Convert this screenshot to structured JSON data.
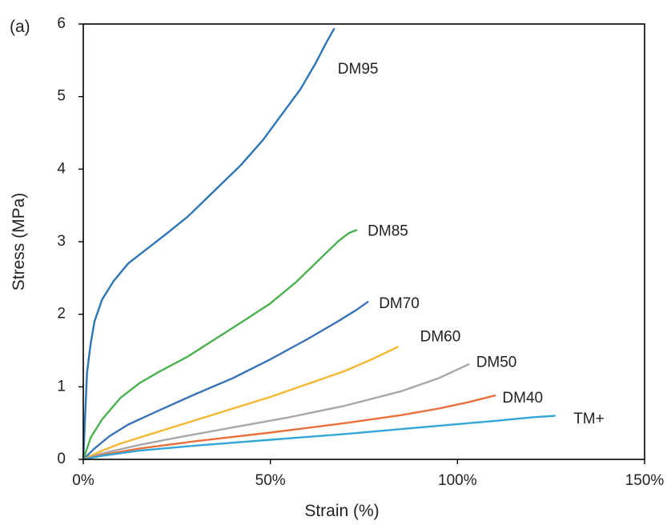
{
  "chart_data": {
    "type": "line",
    "panel_label": "(a)",
    "xlabel": "Strain (%)",
    "ylabel": "Stress (MPa)",
    "xlim": [
      0,
      150
    ],
    "ylim": [
      0,
      6
    ],
    "x_ticks": [
      0,
      50,
      100,
      150
    ],
    "x_tick_labels": [
      "0%",
      "50%",
      "100%",
      "150%"
    ],
    "y_ticks": [
      0,
      1,
      2,
      3,
      4,
      5,
      6
    ],
    "y_tick_labels": [
      "0",
      "1",
      "2",
      "3",
      "4",
      "5",
      "6"
    ],
    "grid": false,
    "legend": "none",
    "series": [
      {
        "name": "DM95",
        "color": "#2E75B6",
        "points": [
          [
            0,
            0
          ],
          [
            0.5,
            0.6
          ],
          [
            1,
            1.2
          ],
          [
            2,
            1.6
          ],
          [
            3,
            1.9
          ],
          [
            5,
            2.2
          ],
          [
            8,
            2.45
          ],
          [
            12,
            2.7
          ],
          [
            17,
            2.9
          ],
          [
            22,
            3.1
          ],
          [
            28,
            3.35
          ],
          [
            35,
            3.7
          ],
          [
            42,
            4.05
          ],
          [
            48,
            4.4
          ],
          [
            53,
            4.75
          ],
          [
            58,
            5.1
          ],
          [
            62,
            5.45
          ],
          [
            65,
            5.75
          ],
          [
            67,
            5.93
          ]
        ]
      },
      {
        "name": "DM85",
        "color": "#4CB050",
        "points": [
          [
            0,
            0
          ],
          [
            2,
            0.3
          ],
          [
            5,
            0.55
          ],
          [
            10,
            0.85
          ],
          [
            15,
            1.05
          ],
          [
            20,
            1.2
          ],
          [
            28,
            1.42
          ],
          [
            35,
            1.65
          ],
          [
            42,
            1.88
          ],
          [
            50,
            2.15
          ],
          [
            57,
            2.45
          ],
          [
            63,
            2.75
          ],
          [
            68,
            3.0
          ],
          [
            71,
            3.12
          ],
          [
            73,
            3.16
          ]
        ]
      },
      {
        "name": "DM70",
        "color": "#3A73B8",
        "points": [
          [
            0,
            0
          ],
          [
            3,
            0.15
          ],
          [
            7,
            0.32
          ],
          [
            12,
            0.48
          ],
          [
            20,
            0.67
          ],
          [
            30,
            0.9
          ],
          [
            40,
            1.12
          ],
          [
            50,
            1.38
          ],
          [
            60,
            1.66
          ],
          [
            68,
            1.9
          ],
          [
            73,
            2.06
          ],
          [
            76,
            2.17
          ]
        ]
      },
      {
        "name": "DM60",
        "color": "#F5B731",
        "points": [
          [
            0,
            0
          ],
          [
            5,
            0.12
          ],
          [
            10,
            0.22
          ],
          [
            20,
            0.38
          ],
          [
            30,
            0.54
          ],
          [
            40,
            0.7
          ],
          [
            50,
            0.86
          ],
          [
            60,
            1.04
          ],
          [
            70,
            1.22
          ],
          [
            78,
            1.4
          ],
          [
            84,
            1.55
          ]
        ]
      },
      {
        "name": "DM50",
        "color": "#A8A8A8",
        "points": [
          [
            0,
            0
          ],
          [
            5,
            0.08
          ],
          [
            15,
            0.2
          ],
          [
            25,
            0.3
          ],
          [
            40,
            0.44
          ],
          [
            55,
            0.58
          ],
          [
            70,
            0.74
          ],
          [
            85,
            0.94
          ],
          [
            95,
            1.12
          ],
          [
            103,
            1.31
          ]
        ]
      },
      {
        "name": "DM40",
        "color": "#E9703B",
        "points": [
          [
            0,
            0
          ],
          [
            5,
            0.06
          ],
          [
            15,
            0.15
          ],
          [
            30,
            0.25
          ],
          [
            50,
            0.37
          ],
          [
            70,
            0.5
          ],
          [
            85,
            0.61
          ],
          [
            95,
            0.7
          ],
          [
            103,
            0.79
          ],
          [
            110,
            0.88
          ]
        ]
      },
      {
        "name": "TM+",
        "color": "#33A6D8",
        "points": [
          [
            0,
            0
          ],
          [
            5,
            0.05
          ],
          [
            15,
            0.12
          ],
          [
            30,
            0.19
          ],
          [
            50,
            0.27
          ],
          [
            70,
            0.35
          ],
          [
            90,
            0.44
          ],
          [
            110,
            0.53
          ],
          [
            120,
            0.58
          ],
          [
            126,
            0.6
          ]
        ]
      }
    ],
    "labels": [
      {
        "text": "DM95",
        "x": 68,
        "y": 5.37
      },
      {
        "text": "DM85",
        "x": 76,
        "y": 3.14
      },
      {
        "text": "DM70",
        "x": 79,
        "y": 2.14
      },
      {
        "text": "DM60",
        "x": 90,
        "y": 1.68
      },
      {
        "text": "DM50",
        "x": 105,
        "y": 1.33
      },
      {
        "text": "DM40",
        "x": 112,
        "y": 0.84
      },
      {
        "text": "TM+",
        "x": 131,
        "y": 0.55
      }
    ]
  }
}
